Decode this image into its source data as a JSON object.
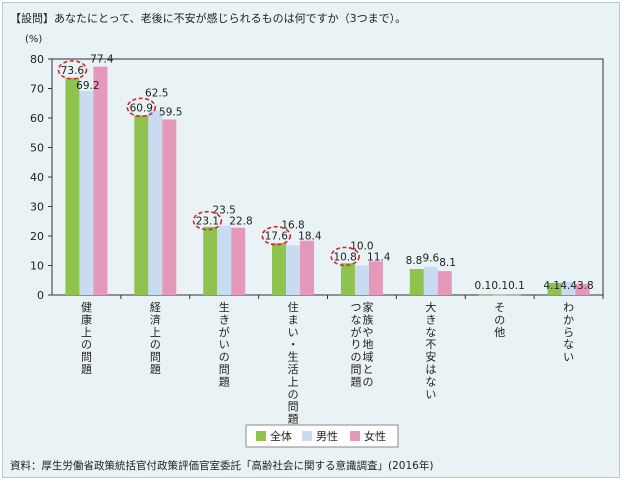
{
  "question": "【設問】あなたにとって、老後に不安が感じられるものは何ですか（3つまで）。",
  "source": "資料：厚生労働省政策統括官付政策評価官室委託「高齢社会に関する意識調査」(2016年)",
  "colors": {
    "series": [
      "#8fc24f",
      "#c9dbf1",
      "#e598b9"
    ],
    "circle": "#d9262b",
    "axis": "#333333",
    "grid": "#999999"
  },
  "chart_data": {
    "type": "bar",
    "ylabel": "(%)",
    "ylim": [
      0,
      80
    ],
    "yticks": [
      "0",
      "10",
      "20",
      "30",
      "40",
      "50",
      "60",
      "70",
      "80"
    ],
    "categories": [
      "健康上の問題",
      "経済上の問題",
      "生きがいの問題",
      "住まい・生活上の問題",
      "家族や地域との\nつながりの問題",
      "大きな不安はない",
      "その他",
      "わからない"
    ],
    "series": [
      {
        "name": "全体",
        "values": [
          73.6,
          60.9,
          23.1,
          17.6,
          10.8,
          8.8,
          0.1,
          4.1
        ]
      },
      {
        "name": "男性",
        "values": [
          69.2,
          62.5,
          23.5,
          16.8,
          10.0,
          9.6,
          0.1,
          4.4
        ]
      },
      {
        "name": "女性",
        "values": [
          77.4,
          59.5,
          22.8,
          18.4,
          11.4,
          8.1,
          0.1,
          3.8
        ]
      }
    ],
    "labels": [
      [
        "73.6",
        "69.2",
        "77.4"
      ],
      [
        "60.9",
        "62.5",
        "59.5"
      ],
      [
        "23.1",
        "23.5",
        "22.8"
      ],
      [
        "17.6",
        "16.8",
        "18.4"
      ],
      [
        "10.8",
        "10.0",
        "11.4"
      ],
      [
        "8.8",
        "9.6",
        "8.1"
      ],
      [
        "0.1",
        "0.1",
        "0.1"
      ],
      [
        "4.1",
        "4.4",
        "3.8"
      ]
    ],
    "circled": [
      0,
      1,
      2,
      3,
      4
    ],
    "legend_position": "bottom-center"
  }
}
